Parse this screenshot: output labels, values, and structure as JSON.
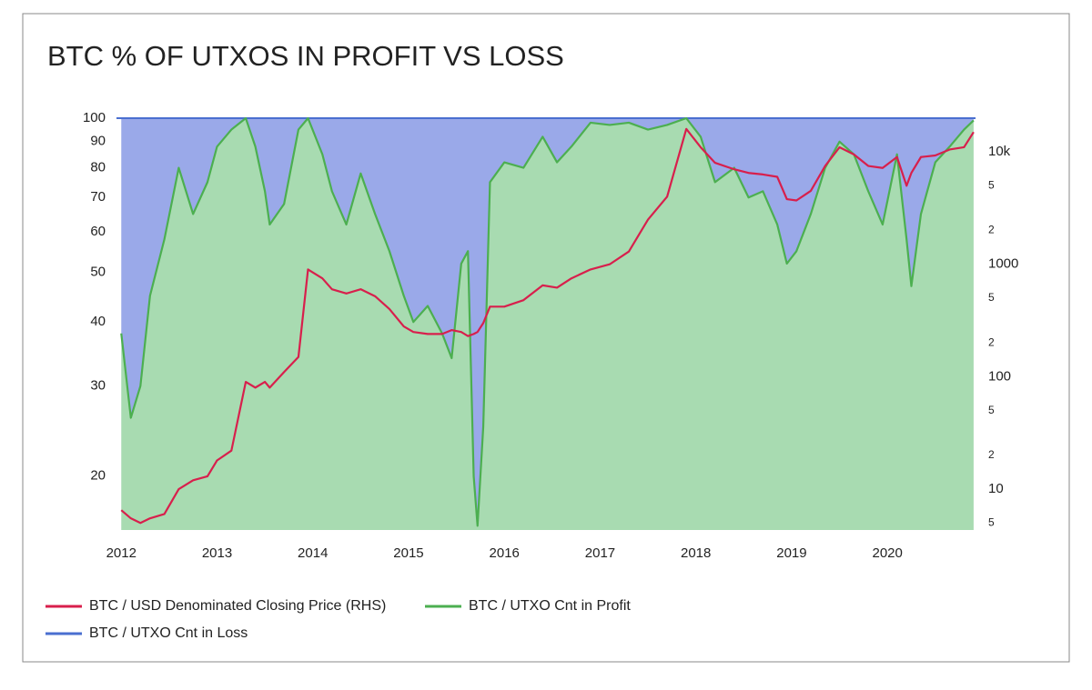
{
  "chart_data": {
    "type": "area",
    "title": "BTC % OF UTXOS IN PROFIT VS LOSS",
    "x": [
      2012.0,
      2012.1,
      2012.2,
      2012.3,
      2012.45,
      2012.6,
      2012.75,
      2012.9,
      2013.0,
      2013.15,
      2013.3,
      2013.4,
      2013.5,
      2013.55,
      2013.7,
      2013.85,
      2013.95,
      2014.1,
      2014.2,
      2014.35,
      2014.5,
      2014.65,
      2014.8,
      2014.95,
      2015.05,
      2015.2,
      2015.35,
      2015.45,
      2015.55,
      2015.62,
      2015.68,
      2015.72,
      2015.78,
      2015.85,
      2016.0,
      2016.2,
      2016.4,
      2016.55,
      2016.7,
      2016.9,
      2017.1,
      2017.3,
      2017.5,
      2017.7,
      2017.9,
      2018.05,
      2018.2,
      2018.4,
      2018.55,
      2018.7,
      2018.85,
      2018.95,
      2019.05,
      2019.2,
      2019.35,
      2019.5,
      2019.65,
      2019.8,
      2019.95,
      2020.1,
      2020.2,
      2020.25,
      2020.35,
      2020.5,
      2020.65,
      2020.8,
      2020.9
    ],
    "series": [
      {
        "name": "BTC / USD Denominated Closing Price (RHS)",
        "color": "#d81f4c",
        "axis": "y2",
        "values": [
          6.5,
          5.5,
          5,
          5.5,
          6,
          10,
          12,
          13,
          18,
          22,
          90,
          80,
          90,
          80,
          110,
          150,
          900,
          750,
          600,
          550,
          600,
          520,
          400,
          280,
          250,
          240,
          240,
          260,
          250,
          230,
          240,
          250,
          300,
          420,
          420,
          480,
          650,
          620,
          750,
          900,
          1000,
          1300,
          2500,
          4000,
          16000,
          11000,
          8000,
          7000,
          6500,
          6300,
          6000,
          3800,
          3700,
          4500,
          7500,
          11000,
          9500,
          7500,
          7200,
          9000,
          5000,
          6500,
          9000,
          9300,
          10500,
          11000,
          15000
        ]
      },
      {
        "name": "BTC / UTXO Cnt in Profit",
        "color": "#4caf50",
        "fill": "#a8dbb1",
        "values": [
          38,
          26,
          30,
          45,
          58,
          80,
          65,
          75,
          88,
          95,
          100,
          88,
          72,
          62,
          68,
          95,
          100,
          85,
          72,
          62,
          78,
          65,
          55,
          45,
          40,
          43,
          38,
          34,
          52,
          55,
          20,
          16,
          25,
          75,
          82,
          80,
          92,
          82,
          88,
          98,
          97,
          98,
          95,
          97,
          100,
          92,
          75,
          80,
          70,
          72,
          62,
          52,
          55,
          65,
          80,
          90,
          85,
          72,
          62,
          85,
          58,
          47,
          65,
          82,
          88,
          95,
          99
        ]
      },
      {
        "name": "BTC / UTXO Cnt in Loss",
        "color": "#4a6fd0",
        "fill": "#9aa9e9",
        "values": [
          62,
          74,
          70,
          55,
          42,
          20,
          35,
          25,
          12,
          5,
          0,
          12,
          28,
          38,
          32,
          5,
          0,
          15,
          28,
          38,
          22,
          35,
          45,
          55,
          60,
          57,
          62,
          66,
          48,
          45,
          80,
          84,
          75,
          25,
          18,
          20,
          8,
          18,
          12,
          2,
          3,
          2,
          5,
          3,
          0,
          8,
          25,
          20,
          30,
          28,
          38,
          48,
          45,
          35,
          20,
          10,
          15,
          28,
          38,
          15,
          42,
          53,
          35,
          18,
          12,
          5,
          1
        ]
      }
    ],
    "xlim": [
      2011.95,
      2020.92
    ],
    "xticks": [
      2012,
      2013,
      2014,
      2015,
      2016,
      2017,
      2018,
      2019,
      2020
    ],
    "ylim": [
      15.7,
      100
    ],
    "ylog": true,
    "yticks": [
      20,
      30,
      40,
      50,
      60,
      70,
      80,
      90,
      100
    ],
    "y2lim": [
      4.33,
      19950
    ],
    "y2log": true,
    "y2ticks": [
      5,
      10,
      {
        "value": 20,
        "label": "2"
      },
      {
        "value": 50,
        "label": "5"
      },
      100,
      {
        "value": 200,
        "label": "2"
      },
      {
        "value": 500,
        "label": "5"
      },
      1000,
      {
        "value": 2000,
        "label": "2"
      },
      {
        "value": 5000,
        "label": "5"
      },
      {
        "value": 10000,
        "label": "10k"
      }
    ]
  }
}
